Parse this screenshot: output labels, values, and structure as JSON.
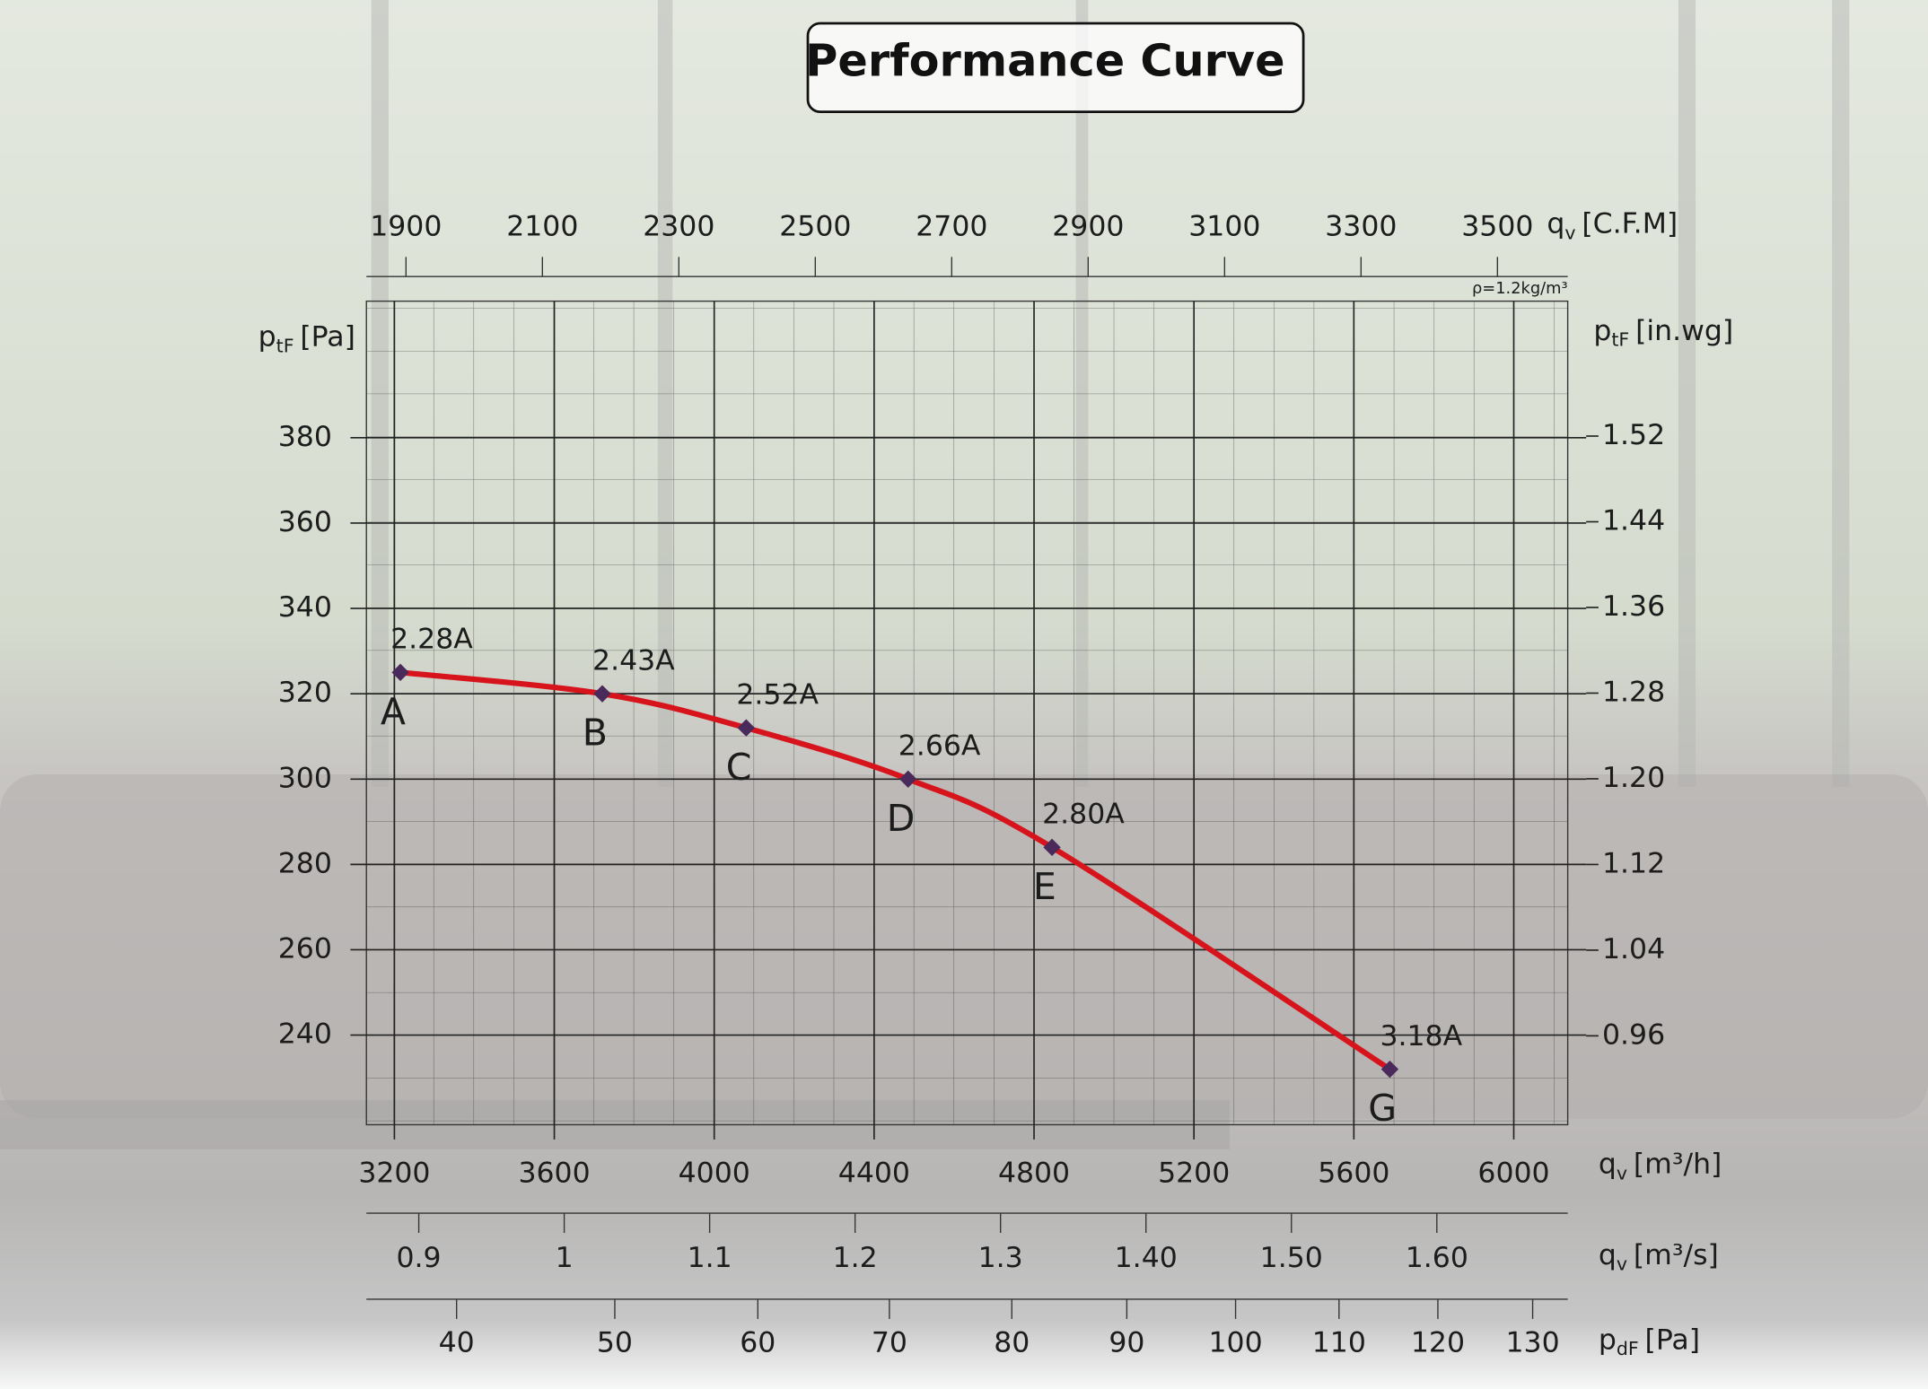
{
  "chart_data": {
    "type": "line",
    "title": "Performance Curve",
    "x": [
      3215,
      3720,
      4080,
      4485,
      4845,
      5690
    ],
    "series": [
      {
        "color": "#d7141c",
        "marker_color": "#4a2a5a",
        "values": [
          325,
          320,
          312,
          300,
          284,
          232
        ],
        "point_labels": [
          "A",
          "B",
          "C",
          "D",
          "E",
          "G"
        ],
        "current_labels": [
          "2.28A",
          "2.43A",
          "2.52A",
          "2.66A",
          "2.80A",
          "3.18A"
        ]
      }
    ],
    "x_label": {
      "symbol": "q",
      "subscript": "v",
      "unit": "[m³/h]"
    },
    "xlim": [
      3130,
      6135
    ],
    "xticks": [
      3200,
      3600,
      4000,
      4400,
      4800,
      5200,
      5600,
      6000
    ],
    "y_label": {
      "symbol": "p",
      "subscript": "tF",
      "unit": "[Pa]"
    },
    "ylim": [
      219,
      412
    ],
    "yticks": [
      240,
      260,
      280,
      300,
      320,
      340,
      360,
      380
    ],
    "y2_label": {
      "symbol": "p",
      "subscript": "tF",
      "unit": "[in.wg]"
    },
    "y2lim": [
      0.877,
      1.646
    ],
    "y2ticks": [
      0.96,
      1.04,
      1.12,
      {
        "value": 1.2,
        "label": "1.20"
      },
      1.28,
      1.36,
      1.44,
      1.52
    ],
    "secondary_x_axes": [
      {
        "position": "top",
        "label": {
          "symbol": "q",
          "subscript": "v",
          "unit": "[C.F.M]"
        },
        "density_note": "ρ=1.2kg/m³",
        "xlim": [
          1842,
          3603
        ],
        "xticks": [
          1900,
          2100,
          2300,
          2500,
          2700,
          2900,
          3100,
          3300,
          3500
        ]
      },
      {
        "position": "bottom",
        "label": {
          "symbol": "q",
          "subscript": "v",
          "unit": "[m³/s]"
        },
        "xlim": [
          0.864,
          1.69
        ],
        "xticks": [
          0.9,
          1,
          1.1,
          1.2,
          1.3,
          {
            "value": 1.4,
            "label": "1.40"
          },
          {
            "value": 1.5,
            "label": "1.50"
          },
          {
            "value": 1.6,
            "label": "1.60"
          }
        ]
      },
      {
        "position": "bottom",
        "label": {
          "symbol": "p",
          "subscript": "dF",
          "unit": "[Pa]"
        },
        "scale": "sqrt",
        "xlim": [
          34.8,
          133.8
        ],
        "xticks": [
          40,
          50,
          60,
          70,
          80,
          90,
          100,
          110,
          120,
          130
        ]
      }
    ],
    "grid": true
  }
}
